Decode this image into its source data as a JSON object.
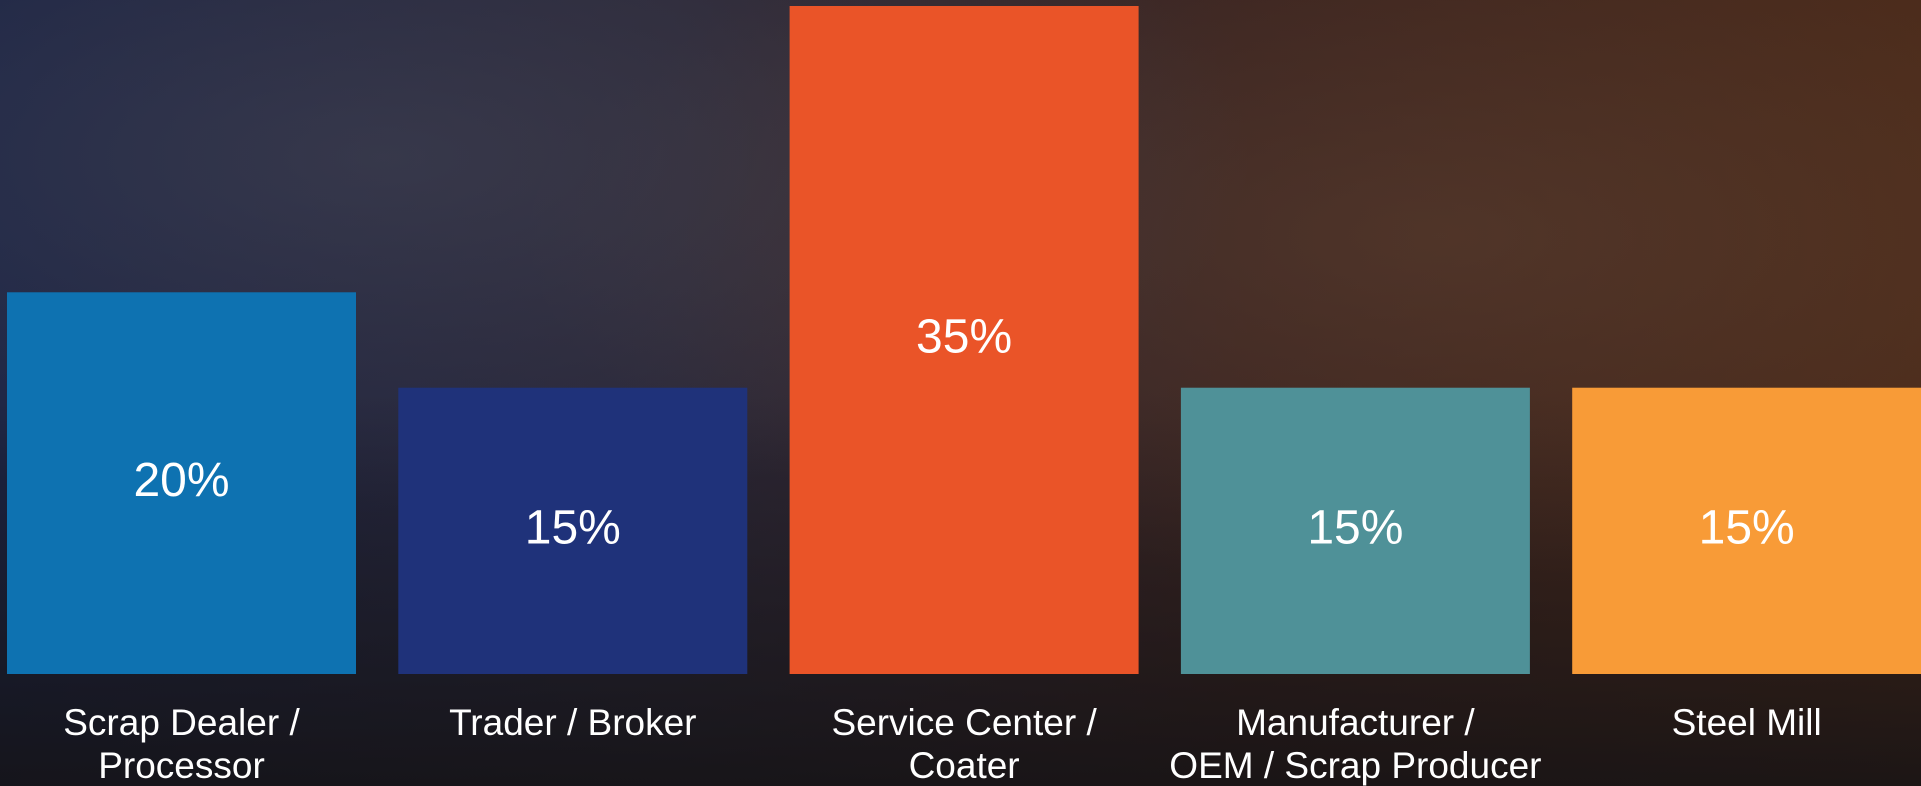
{
  "chart_data": {
    "type": "bar",
    "categories": [
      "Scrap Dealer /\nProcessor",
      "Trader / Broker",
      "Service Center /\nCoater",
      "Manufacturer /\nOEM / Scrap Producer",
      "Steel Mill"
    ],
    "values": [
      20,
      15,
      35,
      15,
      15
    ],
    "value_labels": [
      "20%",
      "15%",
      "35%",
      "15%",
      "15%"
    ],
    "colors": [
      "#0e72b1",
      "#1f327a",
      "#ea5428",
      "#4f9198",
      "#f89b37"
    ]
  }
}
